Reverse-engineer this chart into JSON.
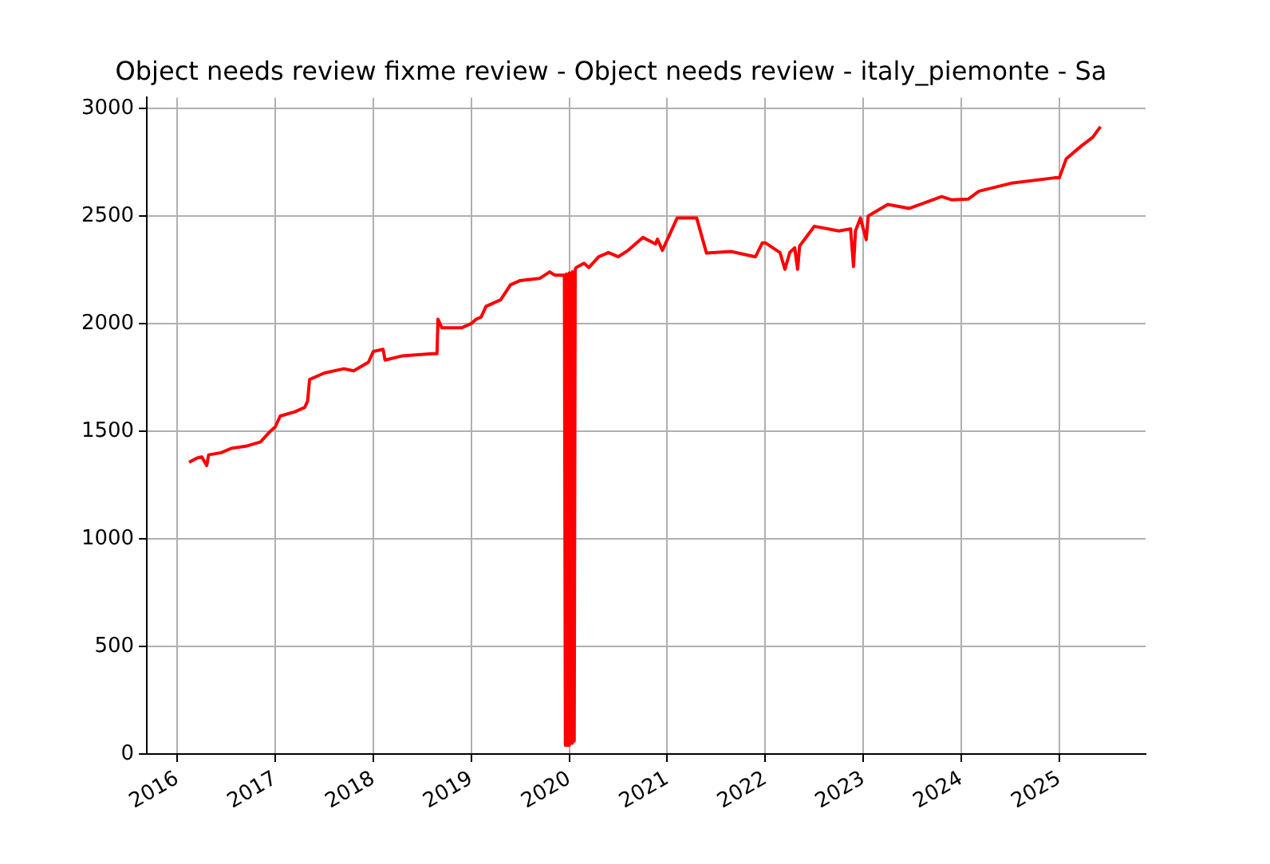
{
  "chart_data": {
    "type": "line",
    "title": "Object needs review fixme review - Object needs review - italy_piemonte - Sa",
    "x": [
      2016.12,
      2016.2,
      2016.25,
      2016.3,
      2016.32,
      2016.45,
      2016.55,
      2016.7,
      2016.85,
      2016.95,
      2017.0,
      2017.05,
      2017.2,
      2017.3,
      2017.33,
      2017.35,
      2017.5,
      2017.7,
      2017.8,
      2017.95,
      2018.0,
      2018.1,
      2018.12,
      2018.3,
      2018.6,
      2018.65,
      2018.66,
      2018.7,
      2018.9,
      2019.0,
      2019.05,
      2019.1,
      2019.15,
      2019.3,
      2019.4,
      2019.5,
      2019.7,
      2019.8,
      2019.85,
      2019.95,
      2019.96,
      2019.97,
      2019.99,
      2020.0,
      2020.02,
      2020.03,
      2020.05,
      2020.06,
      2020.07,
      2020.15,
      2020.2,
      2020.3,
      2020.4,
      2020.5,
      2020.6,
      2020.75,
      2020.88,
      2020.9,
      2020.95,
      2021.1,
      2021.3,
      2021.4,
      2021.65,
      2021.9,
      2021.97,
      2022.0,
      2022.15,
      2022.2,
      2022.25,
      2022.3,
      2022.33,
      2022.35,
      2022.5,
      2022.75,
      2022.87,
      2022.9,
      2022.92,
      2022.97,
      2023.03,
      2023.05,
      2023.25,
      2023.47,
      2023.8,
      2023.9,
      2024.07,
      2024.18,
      2024.51,
      2024.95,
      2025.0,
      2025.07,
      2025.23,
      2025.34,
      2025.42
    ],
    "series": [
      {
        "color": "#ff0000",
        "values": [
          1355,
          1375,
          1380,
          1340,
          1390,
          1400,
          1420,
          1430,
          1450,
          1500,
          1520,
          1570,
          1590,
          1610,
          1640,
          1740,
          1770,
          1790,
          1780,
          1820,
          1870,
          1880,
          1830,
          1850,
          1860,
          1860,
          2020,
          1980,
          1980,
          2000,
          2020,
          2030,
          2080,
          2110,
          2180,
          2200,
          2210,
          2240,
          2225,
          2225,
          40,
          2230,
          40,
          2235,
          50,
          2240,
          60,
          2250,
          2260,
          2280,
          2260,
          2310,
          2330,
          2310,
          2340,
          2400,
          2370,
          2392,
          2340,
          2490,
          2490,
          2327,
          2335,
          2310,
          2375,
          2375,
          2330,
          2252,
          2330,
          2352,
          2252,
          2360,
          2452,
          2430,
          2440,
          2265,
          2430,
          2490,
          2390,
          2500,
          2553,
          2535,
          2590,
          2575,
          2578,
          2615,
          2652,
          2677,
          2677,
          2765,
          2827,
          2865,
          2915
        ]
      }
    ],
    "xlim": [
      2015.69,
      2025.88
    ],
    "xticks": [
      2016,
      2017,
      2018,
      2019,
      2020,
      2021,
      2022,
      2023,
      2024,
      2025
    ],
    "ylim": [
      0,
      3050
    ],
    "yticks": [
      0,
      500,
      1000,
      1500,
      2000,
      2500,
      3000
    ],
    "grid": true,
    "marker": "none",
    "line_style": "solid"
  }
}
